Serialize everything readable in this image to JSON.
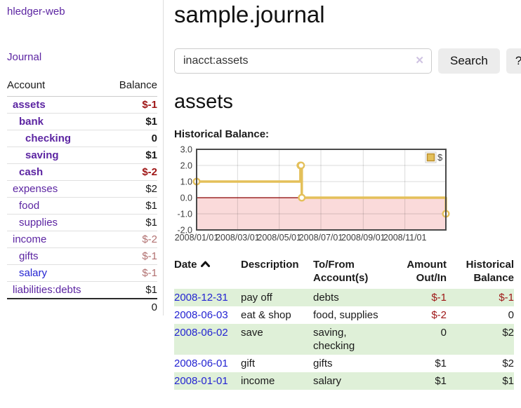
{
  "app": {
    "title": "hledger-web",
    "nav_journal": "Journal"
  },
  "colors": {
    "link_purple": "#5c25a2",
    "link_blue": "#2323d2",
    "negative_strong": "#9e1515",
    "negative_muted": "#b17070",
    "row_green": "#dff0d8",
    "chart_gold": "#e4c05a",
    "chart_pink": "#fadada",
    "zero_line_red": "#8b0000"
  },
  "sidebar": {
    "headers": {
      "account": "Account",
      "balance": "Balance"
    },
    "accounts": [
      {
        "name": "assets",
        "level": 1,
        "bold": true,
        "balance": "$-1",
        "balance_style": "neg-strong"
      },
      {
        "name": "bank",
        "level": 2,
        "bold": true,
        "balance": "$1",
        "balance_style": "pos"
      },
      {
        "name": "checking",
        "level": 3,
        "bold": true,
        "balance": "0",
        "balance_style": "pos"
      },
      {
        "name": "saving",
        "level": 3,
        "bold": true,
        "balance": "$1",
        "balance_style": "pos"
      },
      {
        "name": "cash",
        "level": 2,
        "bold": true,
        "balance": "$-2",
        "balance_style": "neg-strong"
      },
      {
        "name": "expenses",
        "level": 1,
        "bold": false,
        "balance": "$2",
        "balance_style": "pos"
      },
      {
        "name": "food",
        "level": 2,
        "bold": false,
        "balance": "$1",
        "balance_style": "pos"
      },
      {
        "name": "supplies",
        "level": 2,
        "bold": false,
        "balance": "$1",
        "balance_style": "pos"
      },
      {
        "name": "income",
        "level": 1,
        "bold": false,
        "balance": "$-2",
        "balance_style": "neg-muted"
      },
      {
        "name": "gifts",
        "level": 2,
        "bold": false,
        "balance": "$-1",
        "balance_style": "neg-muted"
      },
      {
        "name": "salary",
        "level": 2,
        "bold": false,
        "balance": "$-1",
        "balance_style": "neg-muted",
        "link_color": "blue"
      },
      {
        "name": "liabilities:debts",
        "level": 1,
        "bold": false,
        "balance": "$1",
        "balance_style": "pos"
      }
    ],
    "total": "0"
  },
  "header": {
    "title": "sample.journal"
  },
  "search": {
    "value": "inacct:assets",
    "clear_icon": "✕",
    "search_label": "Search",
    "help_label": "?"
  },
  "account_page": {
    "heading": "assets",
    "chart_title": "Historical Balance:"
  },
  "chart_data": {
    "type": "line",
    "interpolation": "step-after",
    "title": "Historical Balance",
    "series": [
      {
        "name": "$",
        "color": "#e4c05a",
        "points": [
          [
            "2008-01-01",
            1
          ],
          [
            "2008-06-01",
            2
          ],
          [
            "2008-06-02",
            2
          ],
          [
            "2008-06-03",
            0
          ],
          [
            "2008-12-31",
            -1
          ]
        ]
      }
    ],
    "x_range": [
      "2008-01-01",
      "2008-12-31"
    ],
    "x_ticks": [
      "2008/01/01",
      "2008/03/01",
      "2008/05/01",
      "2008/07/01",
      "2008/09/01",
      "2008/11/01"
    ],
    "y_ticks": [
      3.0,
      2.0,
      1.0,
      0.0,
      -1.0,
      -2.0
    ],
    "ylim": [
      -2,
      3
    ],
    "grid": true,
    "legend": {
      "label": "$",
      "position": "top-right"
    },
    "negative_region_color": "#fadada",
    "zero_line_color": "#8b0000"
  },
  "register": {
    "headers": [
      {
        "label": "Date",
        "sorted": "ascending"
      },
      {
        "label": "Description"
      },
      {
        "label": "To/From Account(s)"
      },
      {
        "label": "Amount Out/In"
      },
      {
        "label": "Historical Balance"
      }
    ],
    "rows": [
      {
        "date": "2008-12-31",
        "description": "pay off",
        "accounts": "debts",
        "amount": "$-1",
        "amount_neg": true,
        "balance": "$-1",
        "balance_neg": true,
        "green": true
      },
      {
        "date": "2008-06-03",
        "description": "eat & shop",
        "accounts": "food, supplies",
        "amount": "$-2",
        "amount_neg": true,
        "balance": "0",
        "balance_neg": false,
        "green": false
      },
      {
        "date": "2008-06-02",
        "description": "save",
        "accounts": "saving, checking",
        "amount": "0",
        "amount_neg": false,
        "balance": "$2",
        "balance_neg": false,
        "green": true
      },
      {
        "date": "2008-06-01",
        "description": "gift",
        "accounts": "gifts",
        "amount": "$1",
        "amount_neg": false,
        "balance": "$2",
        "balance_neg": false,
        "green": false
      },
      {
        "date": "2008-01-01",
        "description": "income",
        "accounts": "salary",
        "amount": "$1",
        "amount_neg": false,
        "balance": "$1",
        "balance_neg": false,
        "green": true
      }
    ]
  }
}
